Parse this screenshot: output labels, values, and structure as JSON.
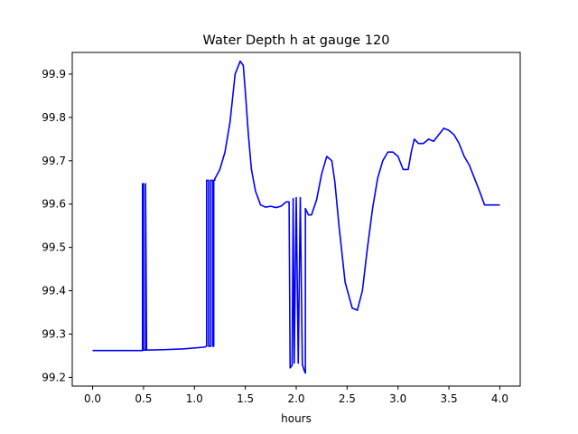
{
  "chart_data": {
    "type": "line",
    "title": "Water Depth h at gauge 120",
    "xlabel": "hours",
    "ylabel": "",
    "xlim": [
      -0.2,
      4.2
    ],
    "ylim": [
      99.18,
      99.95
    ],
    "xticks": [
      0.0,
      0.5,
      1.0,
      1.5,
      2.0,
      2.5,
      3.0,
      3.5,
      4.0
    ],
    "xtick_labels": [
      "0.0",
      "0.5",
      "1.0",
      "1.5",
      "2.0",
      "2.5",
      "3.0",
      "3.5",
      "4.0"
    ],
    "yticks": [
      99.2,
      99.3,
      99.4,
      99.5,
      99.6,
      99.7,
      99.8,
      99.9
    ],
    "ytick_labels": [
      "99.2",
      "99.3",
      "99.4",
      "99.5",
      "99.6",
      "99.7",
      "99.8",
      "99.9"
    ],
    "grid": false,
    "series": [
      {
        "color": "#0000ff",
        "x": [
          0.0,
          0.49,
          0.49,
          0.5,
          0.5,
          0.52,
          0.52,
          0.53,
          0.7,
          0.9,
          1.1,
          1.12,
          1.12,
          1.14,
          1.14,
          1.16,
          1.16,
          1.18,
          1.18,
          1.19,
          1.19,
          1.2,
          1.2,
          1.25,
          1.3,
          1.35,
          1.4,
          1.45,
          1.48,
          1.5,
          1.53,
          1.56,
          1.6,
          1.65,
          1.7,
          1.75,
          1.8,
          1.85,
          1.9,
          1.93,
          1.94,
          1.94,
          1.96,
          1.96,
          1.97,
          1.97,
          1.98,
          1.98,
          2.0,
          2.0,
          2.02,
          2.02,
          2.04,
          2.04,
          2.06,
          2.08,
          2.09,
          2.09,
          2.12,
          2.15,
          2.2,
          2.25,
          2.3,
          2.35,
          2.38,
          2.42,
          2.48,
          2.55,
          2.6,
          2.65,
          2.7,
          2.75,
          2.8,
          2.85,
          2.9,
          2.95,
          3.0,
          3.05,
          3.1,
          3.13,
          3.16,
          3.2,
          3.25,
          3.3,
          3.35,
          3.4,
          3.45,
          3.5,
          3.55,
          3.6,
          3.65,
          3.7,
          3.75,
          3.8,
          3.85,
          3.9,
          3.95,
          4.0
        ],
        "y": [
          99.262,
          99.262,
          99.647,
          99.647,
          99.263,
          99.263,
          99.647,
          99.263,
          99.264,
          99.266,
          99.27,
          99.272,
          99.655,
          99.655,
          99.272,
          99.272,
          99.655,
          99.655,
          99.272,
          99.272,
          99.655,
          99.655,
          99.658,
          99.68,
          99.72,
          99.79,
          99.9,
          99.93,
          99.92,
          99.86,
          99.76,
          99.68,
          99.63,
          99.598,
          99.593,
          99.595,
          99.592,
          99.595,
          99.605,
          99.605,
          99.222,
          99.222,
          99.228,
          99.228,
          99.613,
          99.613,
          99.233,
          99.233,
          99.615,
          99.615,
          99.233,
          99.233,
          99.615,
          99.615,
          99.23,
          99.215,
          99.21,
          99.59,
          99.575,
          99.575,
          99.61,
          99.67,
          99.71,
          99.7,
          99.65,
          99.55,
          99.42,
          99.36,
          99.355,
          99.4,
          99.5,
          99.59,
          99.66,
          99.7,
          99.72,
          99.72,
          99.71,
          99.68,
          99.68,
          99.72,
          99.75,
          99.74,
          99.74,
          99.75,
          99.745,
          99.76,
          99.775,
          99.77,
          99.76,
          99.74,
          99.71,
          99.69,
          99.66,
          99.63,
          99.598,
          99.598,
          99.598,
          99.598
        ]
      }
    ]
  }
}
